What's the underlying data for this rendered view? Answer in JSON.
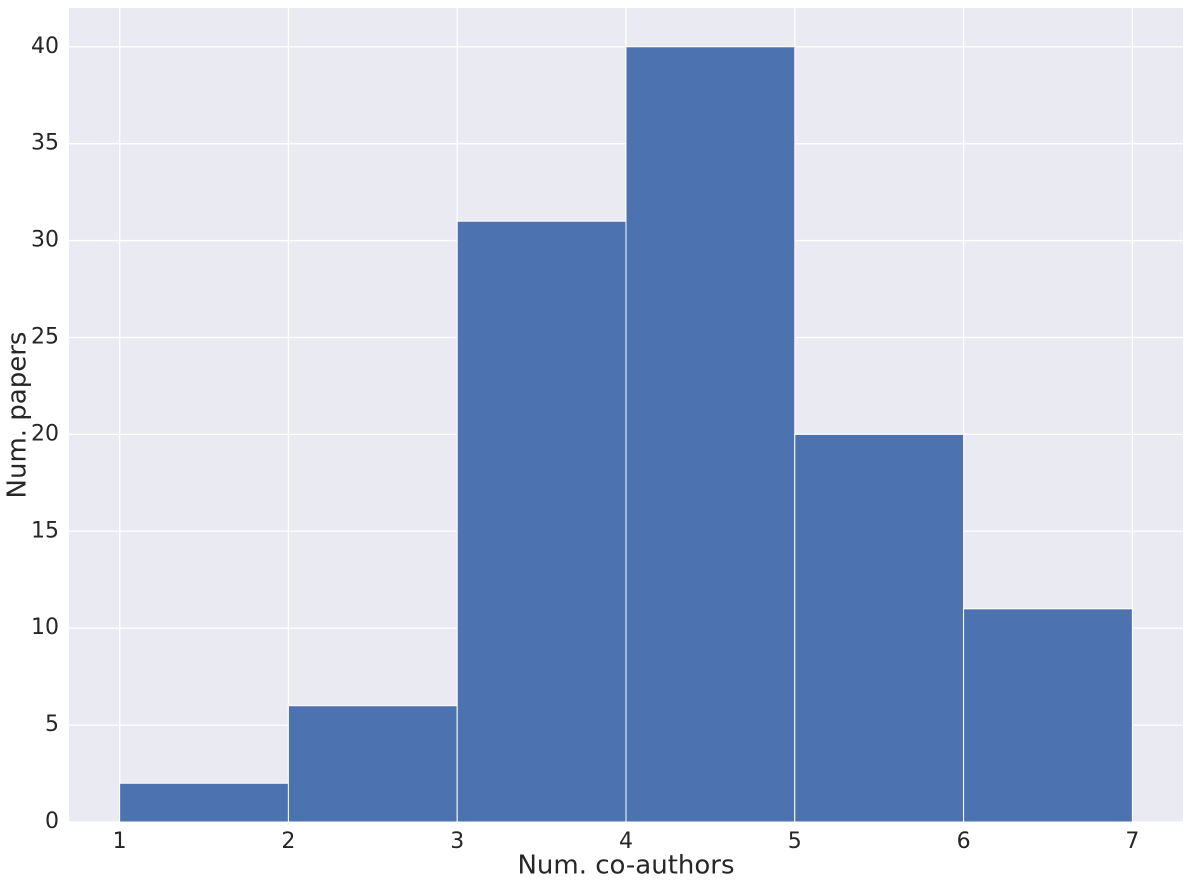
{
  "chart_data": {
    "type": "histogram",
    "x_label": "Num. co-authors",
    "y_label": "Num. papers",
    "bins": [
      1,
      2,
      3,
      4,
      5,
      6,
      7
    ],
    "counts": [
      2,
      6,
      31,
      40,
      20,
      11
    ],
    "color": "#4c72b0",
    "xlim": [
      0.7,
      7.3
    ],
    "ylim": [
      0,
      42
    ],
    "xticks": [
      1,
      2,
      3,
      4,
      5,
      6,
      7
    ],
    "yticks": [
      0,
      5,
      10,
      15,
      20,
      25,
      30,
      35,
      40
    ],
    "grid": true
  }
}
